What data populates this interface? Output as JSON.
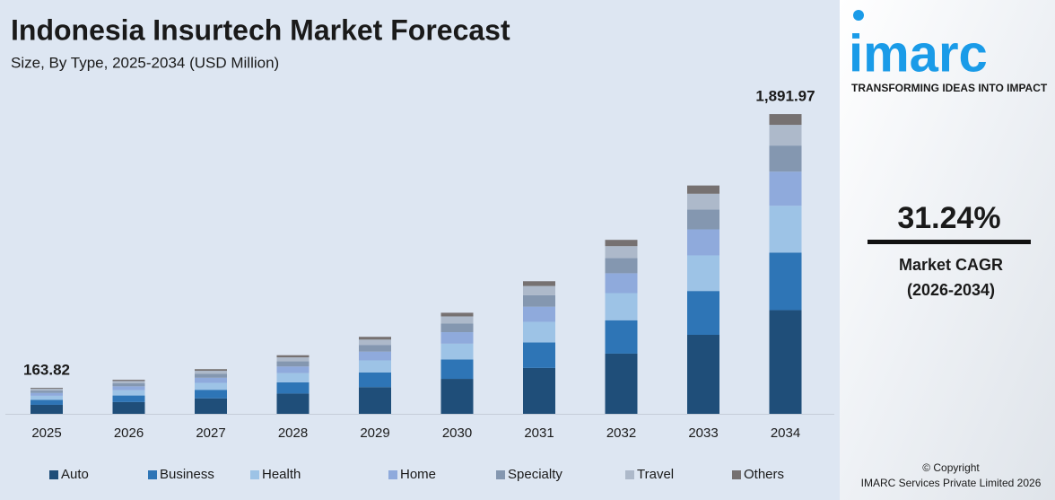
{
  "chart_data": {
    "type": "stacked_bar",
    "title": "Indonesia Insurtech Market Forecast",
    "subtitle": "Size, By Type, 2025-2034 (USD Million)",
    "categories": [
      "2025",
      "2026",
      "2027",
      "2028",
      "2029",
      "2030",
      "2031",
      "2032",
      "2033",
      "2034"
    ],
    "series": [
      {
        "name": "Auto",
        "color": "#1f4e79",
        "values": [
          56.85,
          74.4,
          97.6,
          128.0,
          168.2,
          220.7,
          289.6,
          379.9,
          498.6,
          654.62
        ]
      },
      {
        "name": "Business",
        "color": "#2e75b6",
        "values": [
          31.45,
          41.3,
          54.1,
          71.0,
          93.3,
          122.5,
          160.7,
          210.8,
          276.7,
          363.26
        ]
      },
      {
        "name": "Health",
        "color": "#9dc3e6",
        "values": [
          25.56,
          33.5,
          44.0,
          57.7,
          75.8,
          99.5,
          130.6,
          171.3,
          224.8,
          295.15
        ]
      },
      {
        "name": "Home",
        "color": "#8faadc",
        "values": [
          18.68,
          24.5,
          32.1,
          42.2,
          55.4,
          72.7,
          95.4,
          125.2,
          164.3,
          215.68
        ]
      },
      {
        "name": "Specialty",
        "color": "#8497b0",
        "values": [
          14.25,
          18.7,
          24.5,
          32.2,
          42.3,
          55.5,
          72.8,
          95.5,
          125.4,
          164.6
        ]
      },
      {
        "name": "Travel",
        "color": "#adb9ca",
        "values": [
          11.3,
          14.8,
          19.5,
          25.5,
          33.5,
          44.0,
          57.8,
          75.8,
          99.4,
          130.55
        ]
      },
      {
        "name": "Others",
        "color": "#767171",
        "values": [
          5.73,
          7.7,
          10.2,
          13.3,
          17.5,
          23.0,
          30.1,
          39.5,
          51.9,
          68.11
        ]
      }
    ],
    "totals": {
      "values": [
        163.82,
        null,
        null,
        null,
        null,
        null,
        null,
        null,
        null,
        1891.97
      ],
      "value_labels": [
        "163.82",
        null,
        null,
        null,
        null,
        null,
        null,
        null,
        null,
        "1,891.97"
      ]
    },
    "ylim": [
      0,
      2000
    ],
    "legend": "bottom"
  },
  "sidebar": {
    "logo": "imarc",
    "tagline": "TRANSFORMING IDEAS INTO IMPACT",
    "cagr": "31.24%",
    "cagr_label": "Market CAGR",
    "cagr_period": "(2026-2034)",
    "copyright": "© Copyright",
    "company": "IMARC Services Private Limited 2026"
  }
}
